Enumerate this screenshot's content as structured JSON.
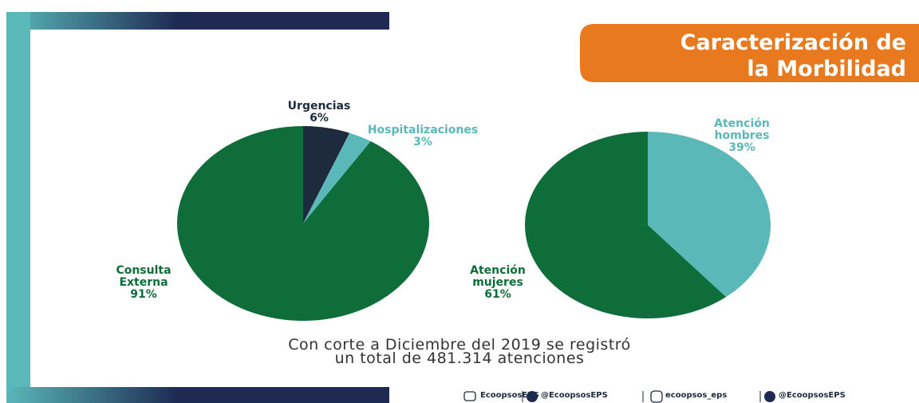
{
  "header": {
    "title_lines": [
      "Caracterización de",
      "la Morbilidad"
    ]
  },
  "chart_data": [
    {
      "type": "pie",
      "categories": [
        "Urgencias",
        "Hospitalizaciones",
        "Consulta Externa"
      ],
      "values": [
        6,
        3,
        91
      ],
      "value_labels": [
        "6%",
        "3%",
        "91%"
      ],
      "colors": [
        "#1e2a3e",
        "#5ab8b9",
        "#0e6d38"
      ]
    },
    {
      "type": "pie",
      "categories": [
        "Atención hombres",
        "Atención mujeres"
      ],
      "values": [
        39,
        61
      ],
      "value_labels": [
        "39%",
        "61%"
      ],
      "colors": [
        "#5ab8b9",
        "#0e6d38"
      ]
    }
  ],
  "caption": [
    "Con corte a Diciembre del 2019 se registró",
    "un total de 481.314 atenciones"
  ],
  "footer": [
    "EcoopsosEPS",
    "@EcoopsosEPS",
    "ecoopsos_eps",
    "@EcoopsosEPS"
  ]
}
